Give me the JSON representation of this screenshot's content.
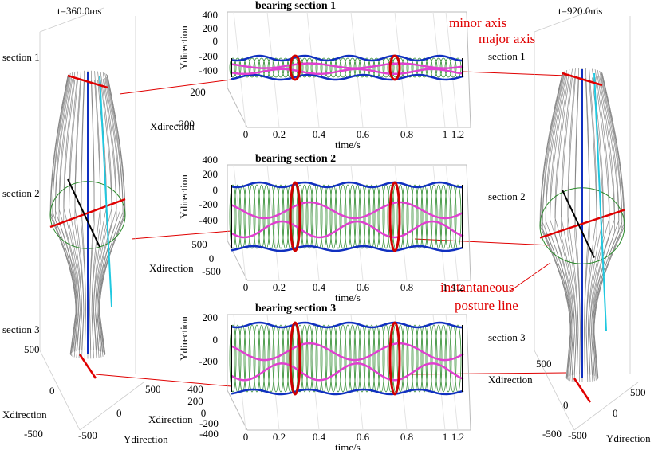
{
  "left_panel": {
    "title": "t=360.0ms",
    "sections": [
      "section 1",
      "section 2",
      "section 3"
    ],
    "x_label": "Xdirection",
    "y_label": "Ydirection",
    "x_ticks": [
      "500",
      "0",
      "-500"
    ],
    "y_ticks": [
      "-500",
      "0",
      "500"
    ]
  },
  "right_panel": {
    "title": "t=920.0ms",
    "sections": [
      "section 1",
      "section 2",
      "section 3"
    ],
    "x_label": "Xdirection",
    "y_label": "Ydirection",
    "x_ticks": [
      "500",
      "0",
      "-500"
    ],
    "y_ticks": [
      "-500",
      "0",
      "500"
    ]
  },
  "subplots": [
    {
      "title": "bearing section 1",
      "y_label": "Ydirection",
      "x_label": "Xdirection",
      "time_label": "time/s",
      "y_ticks": [
        "400",
        "200",
        "0",
        "-200",
        "-400"
      ],
      "x_ticks": [
        "200",
        "-200"
      ],
      "time_ticks": [
        "0",
        "0.2",
        "0.4",
        "0.6",
        "0.8",
        "1",
        "1.2"
      ]
    },
    {
      "title": "bearing section 2",
      "y_label": "Ydirection",
      "x_label": "Xdirection",
      "time_label": "time/s",
      "y_ticks": [
        "400",
        "200",
        "0",
        "-200",
        "-400"
      ],
      "x_ticks": [
        "500",
        "0",
        "-500"
      ],
      "time_ticks": [
        "0",
        "0.2",
        "0.4",
        "0.6",
        "0.8",
        "1",
        "1.2"
      ]
    },
    {
      "title": "bearing section 3",
      "y_label": "Ydirection",
      "x_label": "Xdirection",
      "time_label": "time/s",
      "y_ticks": [
        "200",
        "0",
        "-200"
      ],
      "x_ticks": [
        "400",
        "200",
        "0",
        "-200",
        "-400"
      ],
      "time_ticks": [
        "0",
        "0.2",
        "0.4",
        "0.6",
        "0.8",
        "1",
        "1.2"
      ]
    }
  ],
  "annotations": {
    "minor_axis": "minor axis",
    "major_axis": "major axis",
    "posture_line": [
      "instantaneous",
      "posture line"
    ]
  }
}
